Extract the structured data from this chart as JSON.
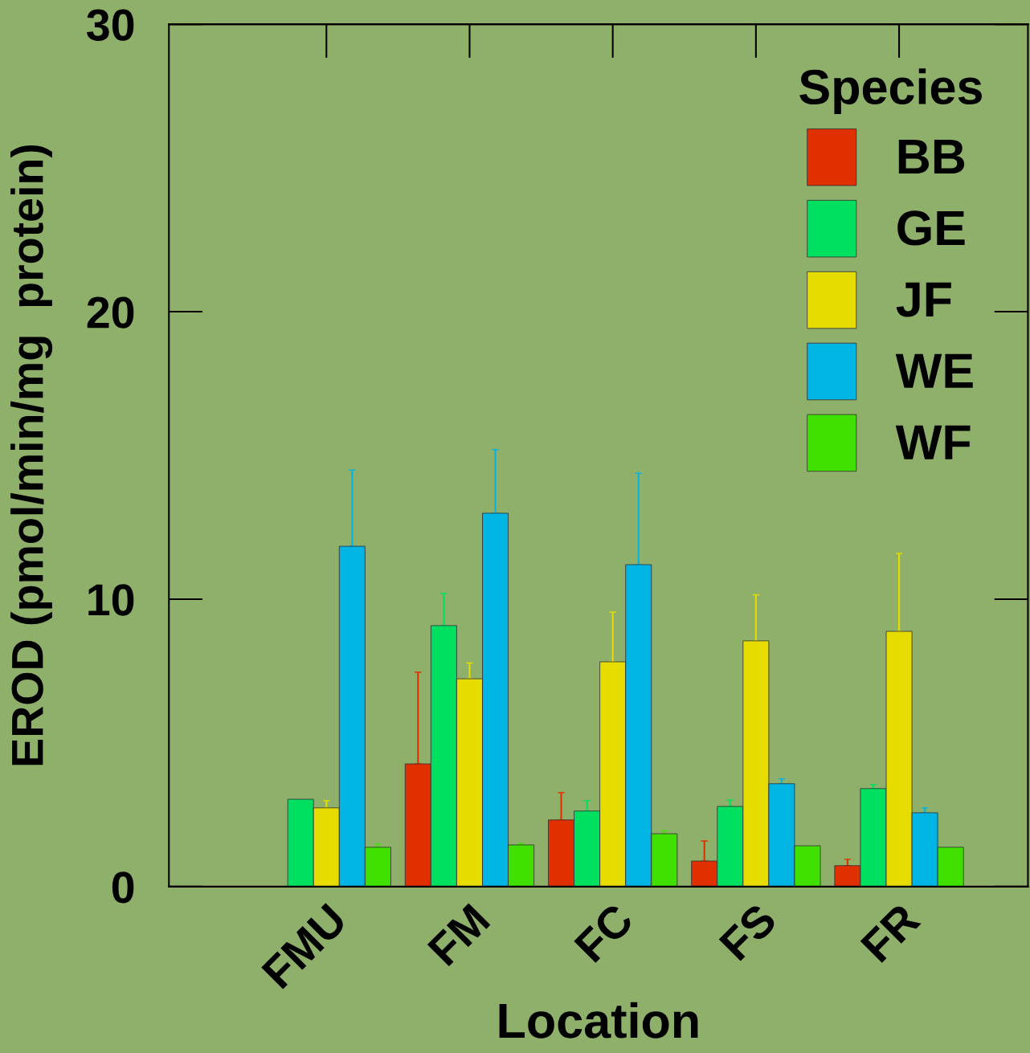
{
  "chart_data": {
    "type": "bar",
    "xlabel": "Location",
    "ylabel": "EROD (pmol/min/mg  protein)",
    "legend_title": "Species",
    "legend": "top right",
    "grid": false,
    "categories": [
      "FMU",
      "FM",
      "FC",
      "FS",
      "FR"
    ],
    "ylim": [
      0,
      30
    ],
    "yticks": [
      0,
      10,
      20,
      30
    ],
    "series": [
      {
        "name": "BB",
        "color": "#e03000",
        "values": [
          null,
          4.27,
          2.32,
          0.89,
          0.73
        ],
        "errors": [
          null,
          [
            4.27,
            7.46
          ],
          [
            2.32,
            3.27
          ],
          [
            0.89,
            1.59
          ],
          [
            0.73,
            0.95
          ]
        ]
      },
      {
        "name": "GE",
        "color": "#00e060",
        "values": [
          3.04,
          9.08,
          2.63,
          2.79,
          3.41
        ],
        "errors": [
          null,
          [
            9.08,
            10.2
          ],
          [
            2.63,
            2.99
          ],
          [
            2.79,
            3.01
          ],
          [
            3.41,
            3.55
          ]
        ]
      },
      {
        "name": "JF",
        "color": "#e6dc00",
        "values": [
          2.74,
          7.23,
          7.82,
          8.55,
          8.88
        ],
        "errors": [
          [
            2.74,
            2.99
          ],
          [
            7.23,
            7.78
          ],
          [
            7.82,
            9.55
          ],
          [
            8.55,
            10.15
          ],
          [
            8.88,
            11.59
          ]
        ]
      },
      {
        "name": "WE",
        "color": "#00b4e4",
        "values": [
          11.84,
          12.99,
          11.2,
          3.58,
          2.57
        ],
        "errors": [
          [
            11.84,
            14.49
          ],
          [
            12.99,
            15.2
          ],
          [
            11.2,
            14.38
          ],
          [
            3.58,
            3.75
          ],
          [
            2.57,
            2.74
          ]
        ]
      },
      {
        "name": "WF",
        "color": "#40e000",
        "values": [
          1.37,
          1.45,
          1.84,
          1.42,
          1.37
        ],
        "errors": [
          [
            1.37,
            1.48
          ],
          [
            1.45,
            1.5
          ],
          [
            1.84,
            1.95
          ],
          null,
          null
        ]
      }
    ]
  }
}
